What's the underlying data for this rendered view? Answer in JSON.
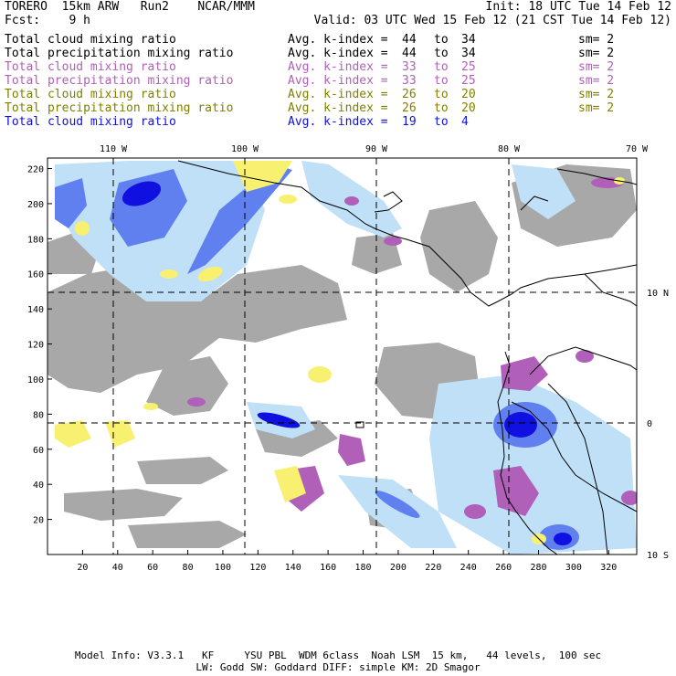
{
  "header": {
    "line1_left": "TORERO  15km ARW   Run2    NCAR/MMM",
    "line1_right": "Init: 18 UTC Tue 14 Feb 12",
    "line2_left": "Fcst:    9 h",
    "line2_right": "Valid: 03 UTC Wed 15 Feb 12 (21 CST Tue 14 Feb 12)"
  },
  "legend": [
    {
      "field": "Total cloud mixing ratio",
      "index_label": "Avg. k-index =",
      "from": "44",
      "to_word": "to",
      "to": "34",
      "sm": "sm= 2",
      "color": "#000000"
    },
    {
      "field": "Total precipitation mixing ratio",
      "index_label": "Avg. k-index =",
      "from": "44",
      "to_word": "to",
      "to": "34",
      "sm": "sm= 2",
      "color": "#000000"
    },
    {
      "field": "Total cloud mixing ratio",
      "index_label": "Avg. k-index =",
      "from": "33",
      "to_word": "to",
      "to": "25",
      "sm": "sm= 2",
      "color": "#b060b8"
    },
    {
      "field": "Total precipitation mixing ratio",
      "index_label": "Avg. k-index =",
      "from": "33",
      "to_word": "to",
      "to": "25",
      "sm": "sm= 2",
      "color": "#b060b8"
    },
    {
      "field": "Total cloud mixing ratio",
      "index_label": "Avg. k-index =",
      "from": "26",
      "to_word": "to",
      "to": "20",
      "sm": "sm= 2",
      "color": "#808000"
    },
    {
      "field": "Total precipitation mixing ratio",
      "index_label": "Avg. k-index =",
      "from": "26",
      "to_word": "to",
      "to": "20",
      "sm": "sm= 2",
      "color": "#808000"
    },
    {
      "field": "Total cloud mixing ratio",
      "index_label": "Avg. k-index =",
      "from": "19",
      "to_word": "to",
      "to": "4",
      "sm": "",
      "color": "#1010e0"
    }
  ],
  "map": {
    "top_lon_labels": [
      "110 W",
      "100 W",
      "90 W",
      "80 W",
      "70 W"
    ],
    "right_lat_labels": [
      "10 N",
      "0",
      "10 S"
    ],
    "left_y_ticks": [
      "220",
      "200",
      "180",
      "160",
      "140",
      "120",
      "100",
      "80",
      "60",
      "40",
      "20"
    ],
    "bottom_x_ticks": [
      "20",
      "40",
      "60",
      "80",
      "100",
      "120",
      "140",
      "160",
      "180",
      "200",
      "220",
      "240",
      "260",
      "280",
      "300",
      "320"
    ],
    "colors": {
      "cloud_gray": "#a8a8a8",
      "magenta": "#b060b8",
      "yellow": "#f8f070",
      "light_blue": "#c0e0f8",
      "mid_blue": "#6080f0",
      "dark_blue": "#1010e0",
      "coast": "#000000"
    }
  },
  "footer": {
    "line1": "Model Info: V3.3.1   KF     YSU PBL  WDM 6class  Noah LSM  15 km,   44 levels,  100 sec",
    "line2": "LW: Godd SW: Goddard DIFF: simple KM: 2D Smagor"
  }
}
